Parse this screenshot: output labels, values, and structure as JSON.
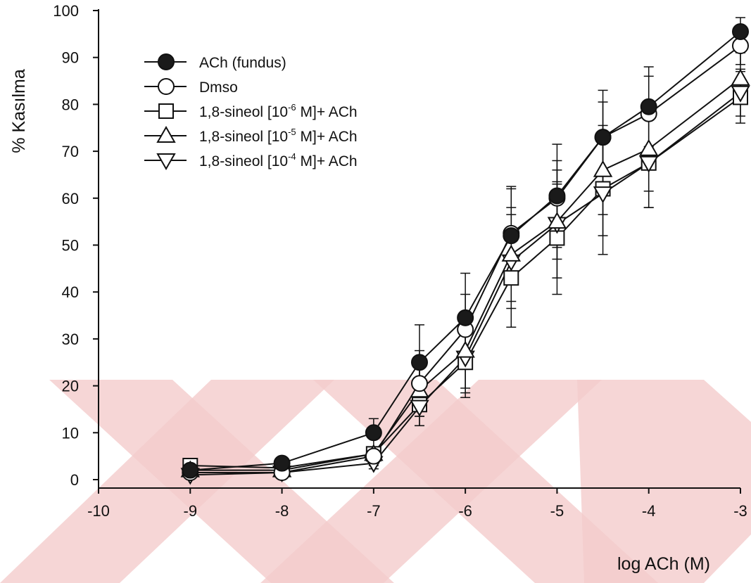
{
  "chart_data": {
    "type": "line",
    "xlabel": "log ACh (M)",
    "ylabel": "% Kasılma",
    "xlim": [
      -10,
      -3
    ],
    "ylim": [
      0,
      100
    ],
    "x_ticks": [
      -10,
      -9,
      -8,
      -7,
      -6,
      -5,
      -4,
      -3
    ],
    "x_tick_labels": [
      "-10",
      "-9",
      "-8",
      "-7",
      "-6",
      "-5",
      "-4",
      "-3"
    ],
    "y_ticks": [
      0,
      10,
      20,
      30,
      40,
      50,
      60,
      70,
      80,
      90,
      100
    ],
    "y_tick_labels": [
      "0",
      "10",
      "20",
      "30",
      "40",
      "50",
      "60",
      "70",
      "80",
      "90",
      "100"
    ],
    "x": [
      -9,
      -8,
      -7,
      -6.5,
      -6,
      -5.5,
      -5,
      -4.5,
      -4,
      -3
    ],
    "legend_position": "top-left",
    "series": [
      {
        "name": "ACh (fundus)",
        "legend_main": "ACh (fundus)",
        "marker": "circle-filled",
        "values": [
          2,
          3.5,
          10,
          25,
          34.5,
          52,
          60.5,
          73,
          79.5,
          95.5
        ],
        "errors": [
          0.8,
          1.0,
          3.0,
          8.0,
          9.5,
          10.5,
          11.0,
          10.0,
          8.5,
          3.0
        ]
      },
      {
        "name": "Dmso",
        "legend_main": "Dmso",
        "marker": "circle-open",
        "values": [
          1.5,
          1.5,
          5,
          20.5,
          32,
          52.5,
          60,
          73,
          78,
          92.5
        ],
        "errors": [
          0.7,
          0.8,
          2.0,
          7.0,
          7.5,
          9.5,
          8.0,
          7.5,
          8.0,
          4.0
        ]
      },
      {
        "name": "1,8-sineol [10-6 M]+ ACh",
        "legend_pre": "1,8-sineol [10",
        "legend_sup": "-6",
        "legend_post": " M]+ ACh",
        "marker": "square-open",
        "values": [
          3,
          2.5,
          5.5,
          16,
          25,
          43,
          51.5,
          62,
          67.5,
          81.5
        ],
        "errors": [
          0.8,
          1.0,
          1.5,
          4.5,
          7.5,
          10.5,
          12.0,
          10.0,
          9.5,
          5.5
        ]
      },
      {
        "name": "1,8-sineol [10-5 M]+ ACh",
        "legend_pre": "1,8-sineol [10",
        "legend_sup": "-5",
        "legend_post": " M]+ ACh",
        "marker": "triangle-up-open",
        "values": [
          2,
          2,
          5.5,
          19,
          27.5,
          48,
          55,
          66,
          70.5,
          85.5
        ],
        "errors": [
          0.8,
          0.8,
          1.5,
          5.5,
          8.0,
          10.0,
          8.0,
          9.5,
          9.0,
          5.5
        ]
      },
      {
        "name": "1,8-sineol [10-4 M]+ ACh",
        "legend_pre": "1,8-sineol [10",
        "legend_sup": "-4",
        "legend_post": " M]+ ACh",
        "marker": "triangle-down-open",
        "values": [
          1,
          1.5,
          3.5,
          15.5,
          26,
          46.5,
          54.5,
          61,
          67.5,
          82.5
        ],
        "errors": [
          0.7,
          0.8,
          1.2,
          4.0,
          7.5,
          10.0,
          11.5,
          13.0,
          9.5,
          5.0
        ]
      }
    ],
    "colors": {
      "ink": "#111111",
      "watermark": "#f4cccc",
      "background": "#ffffff"
    }
  }
}
